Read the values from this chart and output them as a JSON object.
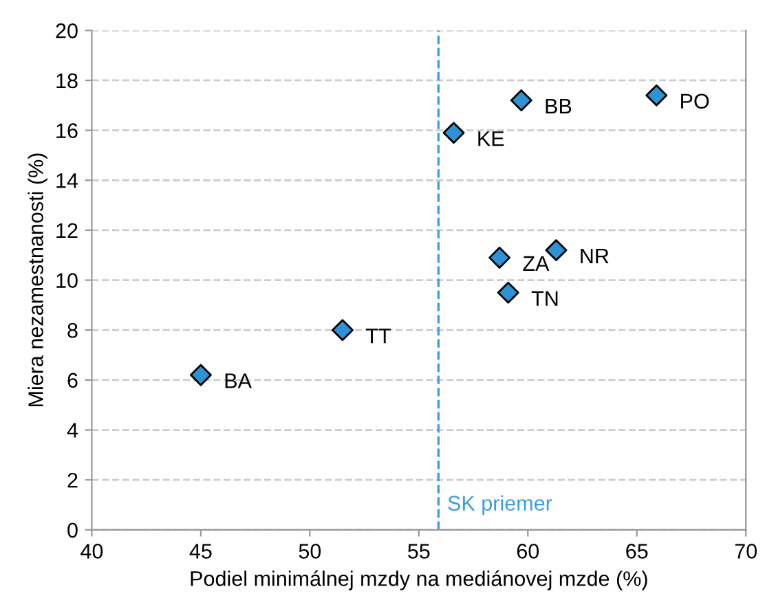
{
  "chart_data": {
    "type": "scatter",
    "xlabel": "Podiel minimálnej mzdy na mediánovej mzde (%)",
    "ylabel": "Miera nezamestnanosti (%)",
    "x": [
      45.0,
      51.5,
      56.6,
      59.7,
      65.9,
      58.7,
      61.3,
      59.1
    ],
    "series": [
      {
        "color": "#2e93d4",
        "values": [
          6.2,
          8.0,
          15.9,
          17.2,
          17.4,
          10.9,
          11.2,
          9.5
        ]
      }
    ],
    "annotations": [
      {
        "text": "BA",
        "x": 45.0,
        "y": 6.2
      },
      {
        "text": "TT",
        "x": 51.5,
        "y": 8.0
      },
      {
        "text": "KE",
        "x": 56.6,
        "y": 15.9
      },
      {
        "text": "BB",
        "x": 59.7,
        "y": 17.2
      },
      {
        "text": "PO",
        "x": 65.9,
        "y": 17.4
      },
      {
        "text": "ZA",
        "x": 58.7,
        "y": 10.9
      },
      {
        "text": "NR",
        "x": 61.3,
        "y": 11.2
      },
      {
        "text": "TN",
        "x": 59.1,
        "y": 9.5
      }
    ],
    "ref_lines": [
      {
        "axis": "x",
        "value": 55.9,
        "label": "SK priemer",
        "color": "#3aa0dc",
        "line_style": "dashed"
      }
    ],
    "xlim": [
      40,
      70
    ],
    "xticks": [
      40,
      45,
      50,
      55,
      60,
      65,
      70
    ],
    "ylim": [
      0,
      20
    ],
    "yticks": [
      0,
      2,
      4,
      6,
      8,
      10,
      12,
      14,
      16,
      18,
      20
    ],
    "grid": "y",
    "marker": "diamond",
    "legend": false
  }
}
